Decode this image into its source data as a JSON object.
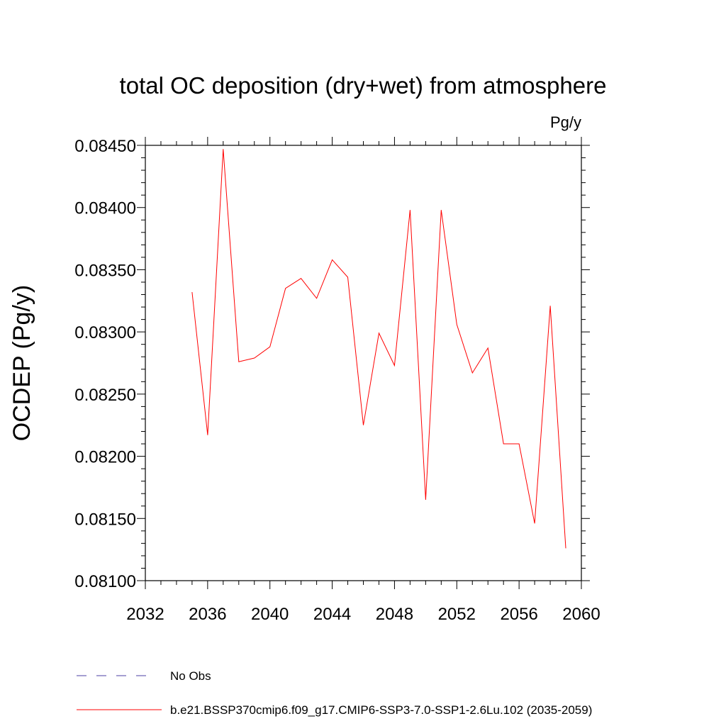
{
  "chart_data": {
    "type": "line",
    "title": "total OC deposition (dry+wet) from atmosphere",
    "units": "Pg/y",
    "xlabel": "",
    "ylabel": "OCDEP  (Pg/y)",
    "xlim": [
      2032,
      2060
    ],
    "ylim": [
      0.081,
      0.0845
    ],
    "x_ticks": [
      2032,
      2036,
      2040,
      2044,
      2048,
      2052,
      2056,
      2060
    ],
    "x_tick_labels": [
      "2032",
      "2036",
      "2040",
      "2044",
      "2048",
      "2052",
      "2056",
      "2060"
    ],
    "y_ticks": [
      0.081,
      0.0815,
      0.082,
      0.0825,
      0.083,
      0.0835,
      0.084,
      0.0845
    ],
    "y_tick_labels": [
      "0.08100",
      "0.08150",
      "0.08200",
      "0.08250",
      "0.08300",
      "0.08350",
      "0.08400",
      "0.08450"
    ],
    "grid": false,
    "series": [
      {
        "name": "b.e21.BSSP370cmip6.f09_g17.CMIP6-SSP3-7.0-SSP1-2.6Lu.102 (2035-2059)",
        "color": "#ff0000",
        "style": "solid",
        "x": [
          2035,
          2036,
          2037,
          2038,
          2039,
          2040,
          2041,
          2042,
          2043,
          2044,
          2045,
          2046,
          2047,
          2048,
          2049,
          2050,
          2051,
          2052,
          2053,
          2054,
          2055,
          2056,
          2057,
          2058,
          2059
        ],
        "values": [
          0.08332,
          0.08217,
          0.08447,
          0.08276,
          0.08279,
          0.08288,
          0.08335,
          0.08343,
          0.08327,
          0.08358,
          0.08344,
          0.08225,
          0.08299,
          0.08273,
          0.08398,
          0.08165,
          0.08398,
          0.08306,
          0.08267,
          0.08287,
          0.0821,
          0.0821,
          0.08146,
          0.08321,
          0.08126
        ]
      }
    ],
    "legend": [
      {
        "label": "No Obs",
        "color": "#4b3fa6",
        "style": "dashed"
      },
      {
        "label": "b.e21.BSSP370cmip6.f09_g17.CMIP6-SSP3-7.0-SSP1-2.6Lu.102 (2035-2059)",
        "color": "#ff0000",
        "style": "solid"
      }
    ],
    "legend_position": "bottom"
  }
}
